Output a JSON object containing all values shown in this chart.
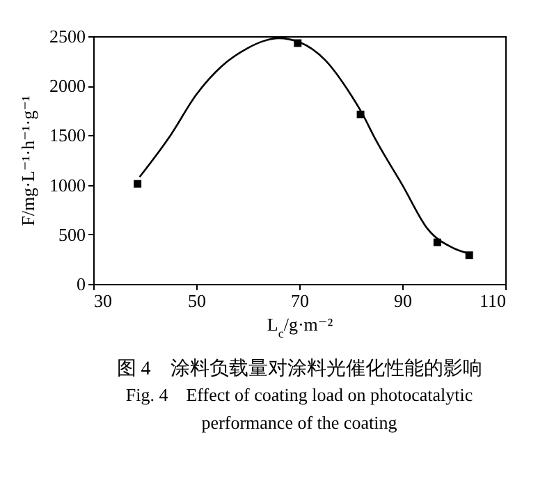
{
  "chart_data": {
    "type": "scatter",
    "title": "图 4　涂料负载量对涂料光催化性能的影响",
    "subtitle": "Fig. 4　Effect of coating load on photocatalytic performance of the coating",
    "xlabel": "L$_{c}$/g·m⁻²",
    "ylabel": "F/mg·L⁻¹·h⁻¹·g⁻¹",
    "xlim": [
      30,
      110
    ],
    "xticks": [
      30,
      50,
      70,
      90,
      110
    ],
    "ylim": [
      0,
      2500
    ],
    "yticks": [
      0,
      500,
      1000,
      1500,
      2000,
      2500
    ],
    "marker": "square",
    "grid": false,
    "series": [
      {
        "type": "line",
        "marker": "none",
        "color": "#000000",
        "x": [
          39,
          45,
          50,
          55,
          60,
          63,
          66,
          70,
          75,
          80,
          82,
          85,
          90,
          95,
          100,
          103.5
        ],
        "values": [
          1080,
          1500,
          1910,
          2200,
          2380,
          2450,
          2480,
          2440,
          2260,
          1910,
          1740,
          1440,
          1000,
          550,
          360,
          300
        ]
      },
      {
        "color": "#000000",
        "x": [
          38.6,
          69.7,
          81.9,
          96.8,
          103
        ],
        "values": [
          1010,
          2430,
          1710,
          420,
          290
        ]
      }
    ]
  }
}
